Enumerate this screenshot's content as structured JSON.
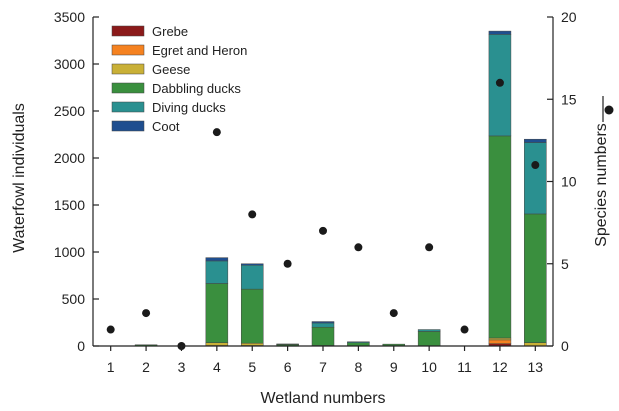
{
  "chart_data": {
    "type": "bar",
    "stacked": true,
    "xlabel": "Wetland numbers",
    "ylabel": "Waterfowl individuals",
    "y2label": "Species numbers",
    "categories": [
      "1",
      "2",
      "3",
      "4",
      "5",
      "6",
      "7",
      "8",
      "9",
      "10",
      "11",
      "12",
      "13"
    ],
    "ylim": [
      0,
      3500
    ],
    "yticks": [
      0,
      500,
      1000,
      1500,
      2000,
      2500,
      3000,
      3500
    ],
    "y2lim": [
      0,
      20
    ],
    "y2ticks": [
      0,
      5,
      10,
      15,
      20
    ],
    "legend_position": "top-left",
    "series": [
      {
        "name": "Grebe",
        "color": "#8b1a1a",
        "values": [
          0,
          0,
          0,
          0,
          0,
          0,
          0,
          0,
          0,
          0,
          0,
          25,
          0
        ]
      },
      {
        "name": "Egret and Heron",
        "color": "#f58220",
        "values": [
          0,
          0,
          0,
          5,
          5,
          0,
          0,
          0,
          0,
          0,
          0,
          40,
          0
        ]
      },
      {
        "name": "Geese",
        "color": "#c9b037",
        "values": [
          0,
          3,
          0,
          30,
          25,
          2,
          5,
          0,
          0,
          0,
          0,
          20,
          35
        ]
      },
      {
        "name": "Dabbling ducks",
        "color": "#3a8f3e",
        "values": [
          0,
          10,
          0,
          630,
          575,
          15,
          195,
          35,
          20,
          155,
          0,
          2150,
          1370
        ]
      },
      {
        "name": "Diving ducks",
        "color": "#2a9090",
        "values": [
          0,
          0,
          0,
          240,
          255,
          5,
          45,
          10,
          0,
          20,
          0,
          1080,
          760
        ]
      },
      {
        "name": "Coot",
        "color": "#1f4e8f",
        "values": [
          0,
          0,
          0,
          35,
          15,
          0,
          15,
          0,
          0,
          0,
          0,
          35,
          35
        ]
      }
    ],
    "species_series": {
      "name": "Species numbers",
      "color": "#1a1a1a",
      "values": [
        1,
        2,
        0,
        13,
        8,
        5,
        7,
        6,
        2,
        6,
        1,
        16,
        11
      ]
    },
    "grid": false
  }
}
